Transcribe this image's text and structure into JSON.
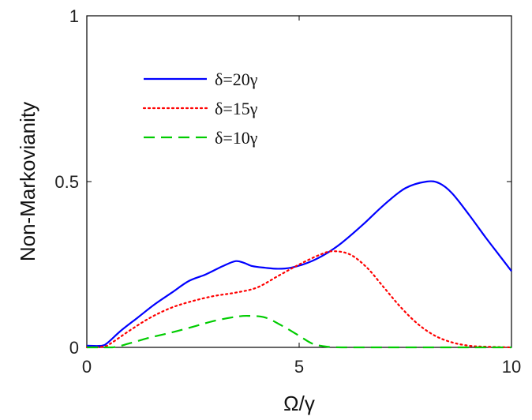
{
  "chart_data": {
    "type": "line",
    "xlabel": "Ω/γ",
    "ylabel": "Non-Markovianity",
    "xlim": [
      0,
      10
    ],
    "ylim": [
      0,
      1
    ],
    "xticks": [
      0,
      5,
      10
    ],
    "xtick_labels": [
      "0",
      "5",
      "10"
    ],
    "yticks": [
      0,
      0.5,
      1
    ],
    "ytick_labels": [
      "0",
      "0.5",
      "1"
    ],
    "grid": false,
    "legend_position": "top-left",
    "series": [
      {
        "name": "δ=20γ",
        "color": "#0000ff",
        "style": "solid",
        "x": [
          0,
          0.35,
          0.5,
          0.8,
          1.2,
          1.6,
          2.0,
          2.4,
          2.8,
          3.2,
          3.5,
          3.7,
          3.9,
          4.2,
          4.5,
          4.8,
          5.2,
          5.6,
          6.0,
          6.5,
          7.0,
          7.5,
          8.0,
          8.3,
          8.6,
          9.0,
          9.4,
          9.7,
          10.0
        ],
        "y": [
          0.005,
          0.005,
          0.015,
          0.05,
          0.09,
          0.13,
          0.165,
          0.2,
          0.22,
          0.245,
          0.26,
          0.255,
          0.245,
          0.24,
          0.237,
          0.24,
          0.255,
          0.28,
          0.315,
          0.37,
          0.43,
          0.48,
          0.5,
          0.495,
          0.465,
          0.4,
          0.33,
          0.28,
          0.23
        ]
      },
      {
        "name": "δ=15γ",
        "color": "#ff0000",
        "style": "dotted",
        "x": [
          0,
          0.4,
          0.6,
          1.0,
          1.5,
          2.0,
          2.5,
          3.0,
          3.5,
          4.0,
          4.5,
          5.0,
          5.5,
          5.8,
          6.2,
          6.6,
          7.0,
          7.4,
          7.8,
          8.2,
          8.6,
          9.0,
          9.4,
          10.0
        ],
        "y": [
          0.0,
          0.002,
          0.015,
          0.05,
          0.09,
          0.12,
          0.14,
          0.155,
          0.165,
          0.18,
          0.215,
          0.25,
          0.28,
          0.29,
          0.28,
          0.24,
          0.18,
          0.12,
          0.07,
          0.035,
          0.015,
          0.005,
          0.002,
          0.0
        ]
      },
      {
        "name": "δ=10γ",
        "color": "#00cc00",
        "style": "dashed",
        "x": [
          0,
          0.6,
          1.0,
          1.5,
          2.0,
          2.5,
          3.0,
          3.5,
          3.8,
          4.2,
          4.6,
          5.0,
          5.3,
          5.6,
          6.0,
          7.0,
          8.0,
          9.0,
          10.0
        ],
        "y": [
          0.0,
          0.0,
          0.012,
          0.03,
          0.045,
          0.062,
          0.08,
          0.092,
          0.095,
          0.09,
          0.065,
          0.035,
          0.012,
          0.003,
          0.0,
          0.0,
          0.0,
          0.0,
          0.0
        ]
      }
    ]
  }
}
